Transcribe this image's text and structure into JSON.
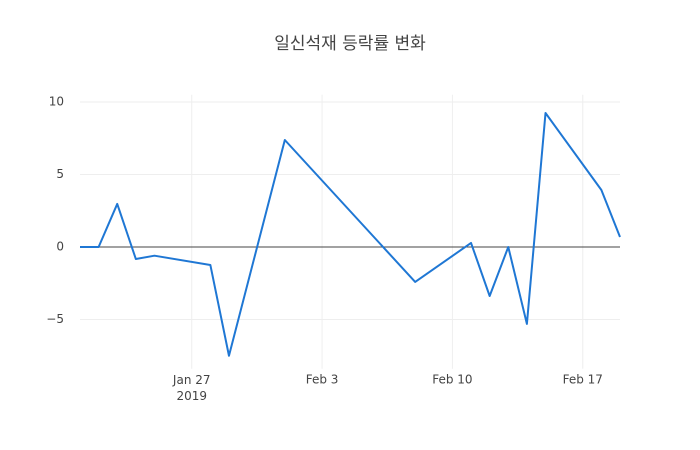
{
  "chart_data": {
    "type": "line",
    "title": "일신석재 등락률 변화",
    "x": [
      "2019-01-21",
      "2019-01-22",
      "2019-01-23",
      "2019-01-24",
      "2019-01-25",
      "2019-01-28",
      "2019-01-29",
      "2019-02-01",
      "2019-02-08",
      "2019-02-11",
      "2019-02-12",
      "2019-02-13",
      "2019-02-14",
      "2019-02-15",
      "2019-02-18",
      "2019-02-19"
    ],
    "values": [
      0,
      0,
      2.97,
      -0.83,
      -0.6,
      -1.24,
      -7.5,
      7.38,
      -2.41,
      0.28,
      -3.38,
      0,
      -5.3,
      9.24,
      3.93,
      0.69
    ],
    "color": "#1f77d4",
    "xlim": [
      "2019-01-21",
      "2019-02-19"
    ],
    "xticks": [
      {
        "value": "2019-01-27",
        "label": "Jan 27\n2019"
      },
      {
        "value": "2019-02-03",
        "label": "Feb 3"
      },
      {
        "value": "2019-02-10",
        "label": "Feb 10"
      },
      {
        "value": "2019-02-17",
        "label": "Feb 17"
      }
    ],
    "ylim": [
      -8.4,
      10.5
    ],
    "yticks": [
      {
        "value": -5,
        "label": "−5"
      },
      0,
      5,
      10
    ],
    "grid": true,
    "zeroline": true
  }
}
